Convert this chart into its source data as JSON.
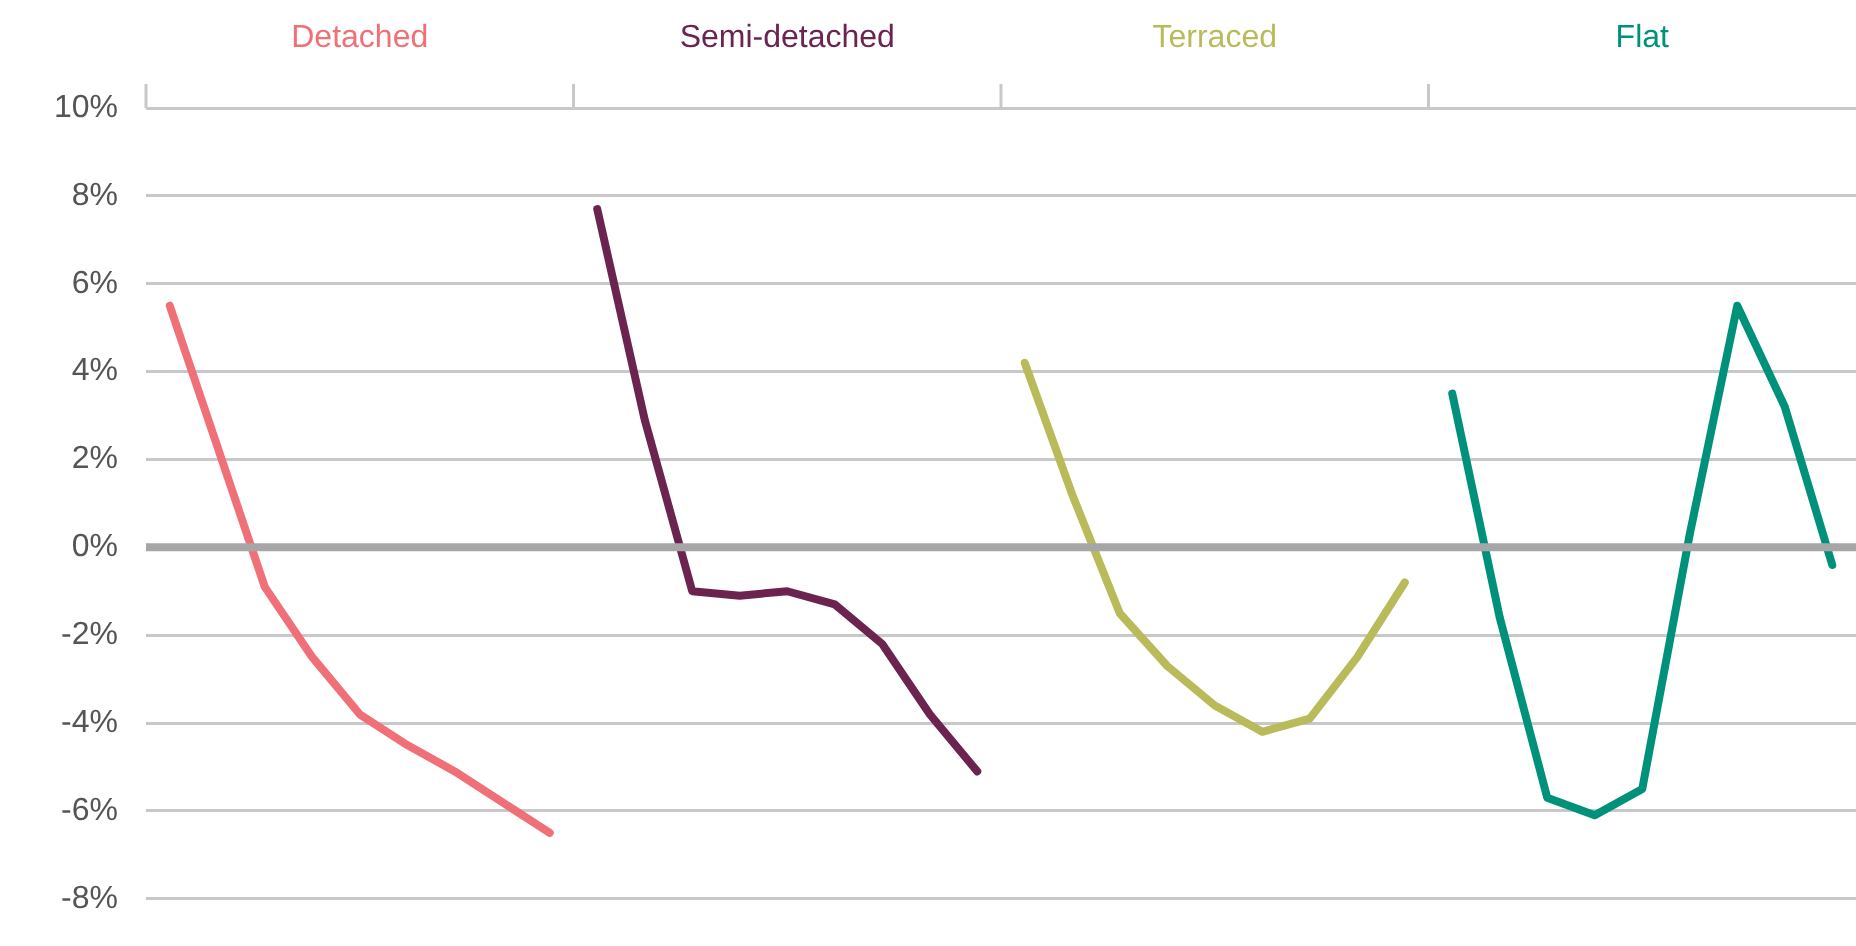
{
  "chart_data": {
    "type": "line",
    "categories": [
      null,
      null,
      null,
      null,
      null,
      null,
      null,
      null,
      null,
      null,
      null,
      null,
      null,
      null,
      null,
      null,
      null,
      null,
      null,
      null,
      null,
      null,
      null,
      null,
      null,
      null,
      null,
      null,
      null,
      null,
      null,
      null,
      null,
      null,
      null,
      null
    ],
    "series": [
      {
        "name": "Detached",
        "color": "#f07078",
        "values": [
          5.5,
          2.3,
          -0.9,
          -2.5,
          -3.8,
          -4.5,
          -5.1,
          -5.8,
          -6.5,
          null,
          null,
          null,
          null,
          null,
          null,
          null,
          null,
          null,
          null,
          null,
          null,
          null,
          null,
          null,
          null,
          null,
          null,
          null,
          null,
          null,
          null,
          null,
          null,
          null,
          null,
          null
        ]
      },
      {
        "name": "Semi-detached",
        "color": "#6b2450",
        "values": [
          null,
          null,
          null,
          null,
          null,
          null,
          null,
          null,
          null,
          7.7,
          2.9,
          -1.0,
          -1.1,
          -1.0,
          -1.3,
          -2.2,
          -3.8,
          -5.1,
          null,
          null,
          null,
          null,
          null,
          null,
          null,
          null,
          null,
          null,
          null,
          null,
          null,
          null,
          null,
          null,
          null,
          null
        ]
      },
      {
        "name": "Terraced",
        "color": "#b9bb5a",
        "values": [
          null,
          null,
          null,
          null,
          null,
          null,
          null,
          null,
          null,
          null,
          null,
          null,
          null,
          null,
          null,
          null,
          null,
          null,
          4.2,
          1.2,
          -1.5,
          -2.7,
          -3.6,
          -4.2,
          -3.9,
          -2.5,
          -0.8,
          null,
          null,
          null,
          null,
          null,
          null,
          null,
          null,
          null
        ]
      },
      {
        "name": "Flat",
        "color": "#00917a",
        "values": [
          null,
          null,
          null,
          null,
          null,
          null,
          null,
          null,
          null,
          null,
          null,
          null,
          null,
          null,
          null,
          null,
          null,
          null,
          null,
          null,
          null,
          null,
          null,
          null,
          null,
          null,
          null,
          3.5,
          -1.6,
          -5.7,
          -6.1,
          -5.5,
          0.3,
          5.5,
          3.2,
          -0.4
        ]
      }
    ],
    "ylim": [
      -8,
      10
    ],
    "yticks": [
      {
        "value": -8,
        "label": "-8%"
      },
      {
        "value": -6,
        "label": "-6%"
      },
      {
        "value": -4,
        "label": "-4%"
      },
      {
        "value": -2,
        "label": "-2%"
      },
      {
        "value": 0,
        "label": "0%"
      },
      {
        "value": 2,
        "label": "2%"
      },
      {
        "value": 4,
        "label": "4%"
      },
      {
        "value": 6,
        "label": "6%"
      },
      {
        "value": 8,
        "label": "8%"
      },
      {
        "value": 10,
        "label": "10%"
      }
    ],
    "ref_lines": [
      {
        "axis": "y",
        "value": 0,
        "color": "#a6a6a8"
      }
    ],
    "grid": "y",
    "legend": false,
    "marker": "none",
    "tick_labels": "y"
  }
}
